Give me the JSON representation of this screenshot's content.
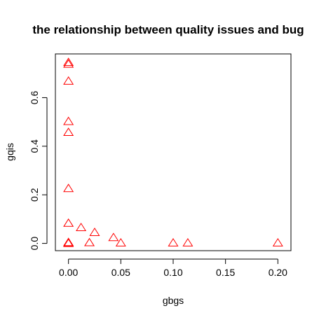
{
  "chart_data": {
    "type": "scatter",
    "title": "the relationship between quality issues and bug",
    "xlabel": "gbgs",
    "ylabel": "gqis",
    "xlim": [
      -0.0125,
      0.2125
    ],
    "ylim": [
      -0.03,
      0.78
    ],
    "x_ticks": [
      0.0,
      0.05,
      0.1,
      0.15,
      0.2
    ],
    "x_tick_labels": [
      "0.00",
      "0.05",
      "0.10",
      "0.15",
      "0.20"
    ],
    "y_ticks": [
      0.0,
      0.2,
      0.4,
      0.6
    ],
    "y_tick_labels": [
      "0.0",
      "0.2",
      "0.4",
      "0.6"
    ],
    "marker": "open-triangle",
    "color": "#ff0000",
    "grid": false,
    "legend": "none",
    "points": [
      {
        "x": 0.0,
        "y": 0.745
      },
      {
        "x": 0.0,
        "y": 0.738
      },
      {
        "x": 0.0,
        "y": 0.668
      },
      {
        "x": 0.0,
        "y": 0.502
      },
      {
        "x": 0.0,
        "y": 0.457
      },
      {
        "x": 0.0,
        "y": 0.226
      },
      {
        "x": 0.0,
        "y": 0.083
      },
      {
        "x": 0.0,
        "y": 0.004
      },
      {
        "x": 0.0,
        "y": 0.002
      },
      {
        "x": 0.0,
        "y": 0.0
      },
      {
        "x": 0.012,
        "y": 0.065
      },
      {
        "x": 0.02,
        "y": 0.003
      },
      {
        "x": 0.025,
        "y": 0.045
      },
      {
        "x": 0.043,
        "y": 0.024
      },
      {
        "x": 0.05,
        "y": 0.002
      },
      {
        "x": 0.1,
        "y": 0.002
      },
      {
        "x": 0.114,
        "y": 0.002
      },
      {
        "x": 0.2,
        "y": 0.002
      }
    ]
  }
}
